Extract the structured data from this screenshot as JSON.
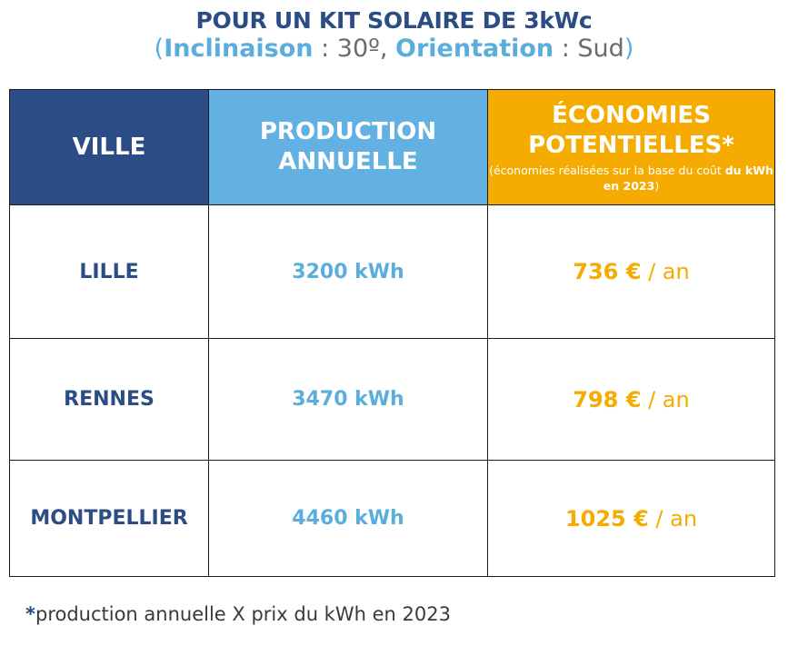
{
  "title": {
    "line1": "POUR UN KIT SOLAIRE DE 3kWc",
    "open_paren": "(",
    "inclinaison_label": "Inclinaison",
    "inclinaison_value": " : 30º, ",
    "orientation_label": "Orientation",
    "orientation_value": " : Sud",
    "close_paren": ")"
  },
  "table": {
    "headers": {
      "ville": "VILLE",
      "production_line1": "PRODUCTION",
      "production_line2": "ANNUELLE",
      "economies_line1": "ÉCONOMIES",
      "economies_line2": "POTENTIELLES*",
      "economies_note_part1": "(économies réalisées sur la base du coût ",
      "economies_note_bold": "du kWh en 2023",
      "economies_note_part2": ")"
    },
    "rows": [
      {
        "city": "LILLE",
        "production": "3200 kWh",
        "amount": "736 €",
        "unit": " / an"
      },
      {
        "city": "RENNES",
        "production": "3470 kWh",
        "amount": "798 €",
        "unit": " / an"
      },
      {
        "city": "MONTPELLIER",
        "production": "4460 kWh",
        "amount": "1025 €",
        "unit": " / an"
      }
    ]
  },
  "footnote": {
    "star": "*",
    "text": "production annuelle X prix du kWh en 2023"
  },
  "colors": {
    "dark_blue": "#2b4c84",
    "light_blue": "#63b0e2",
    "orange": "#f5ab00"
  }
}
